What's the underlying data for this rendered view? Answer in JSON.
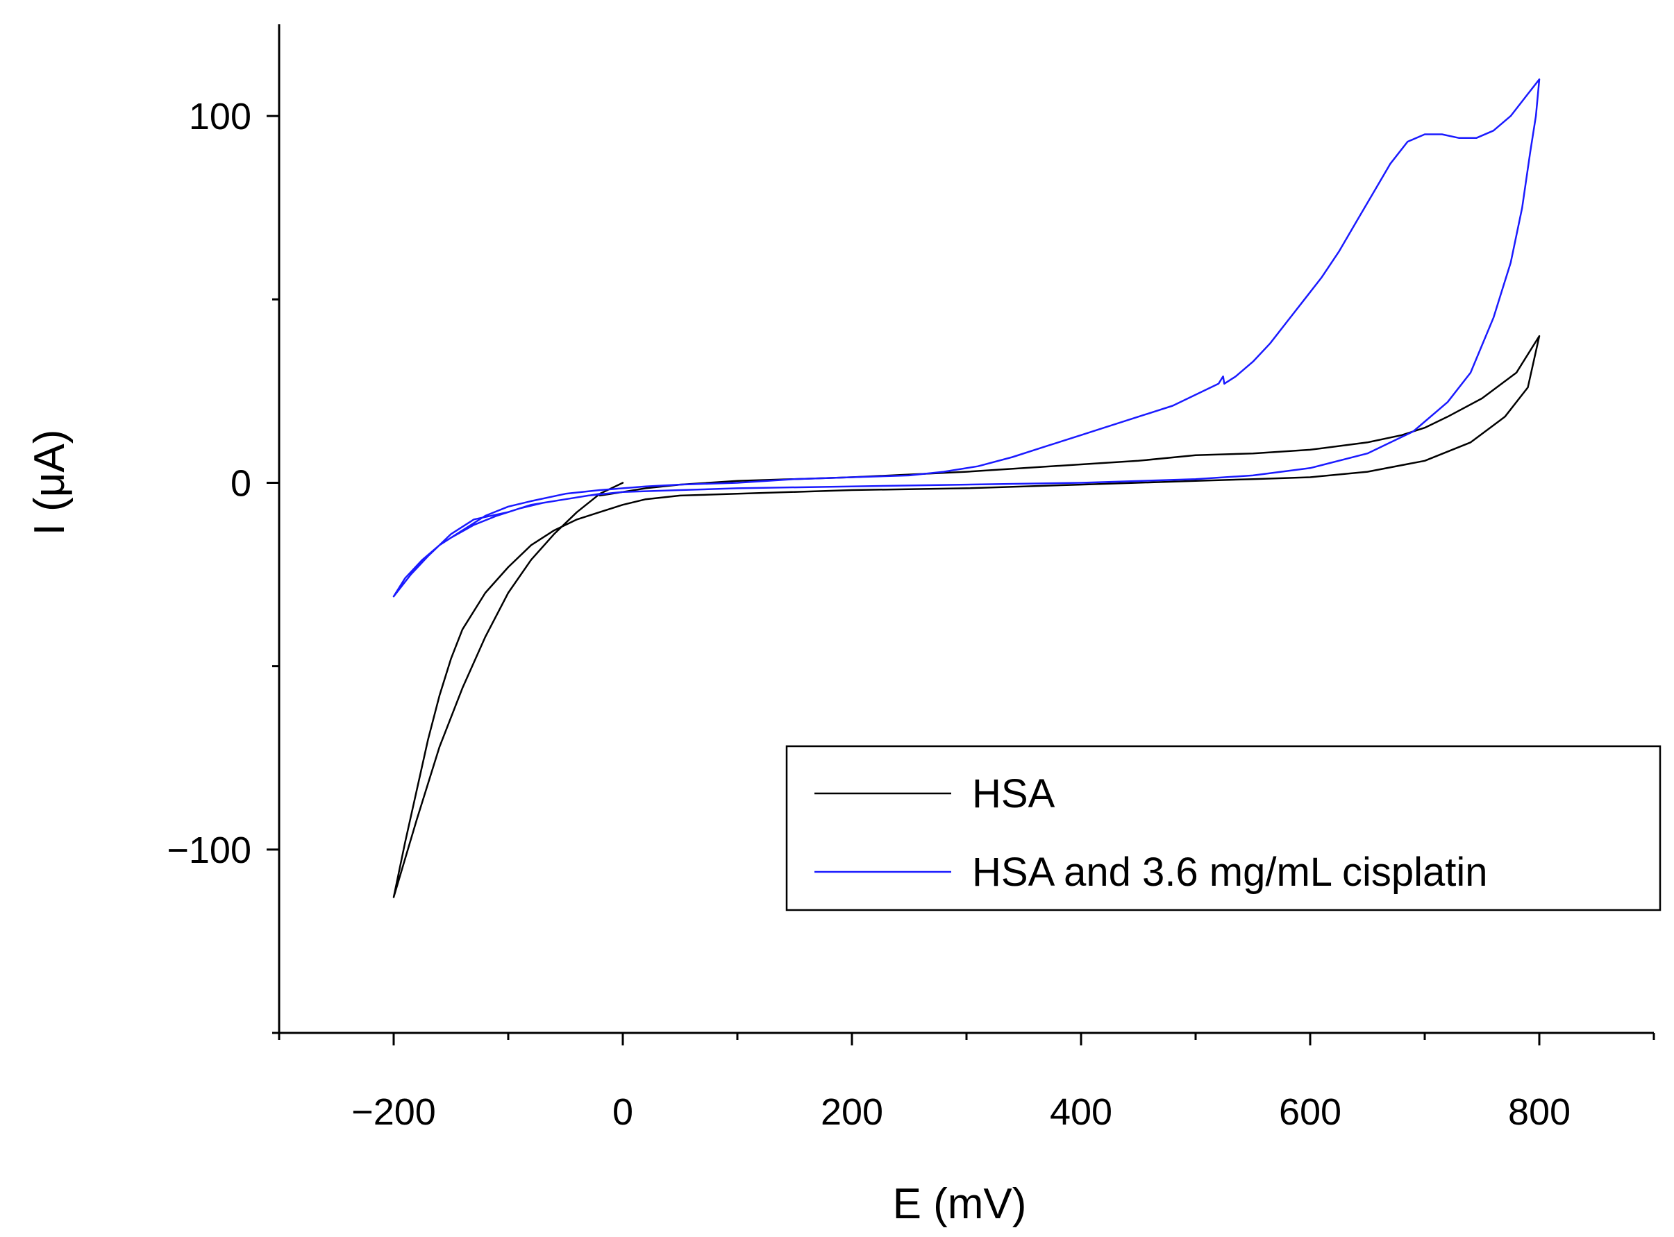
{
  "chart_data": {
    "type": "line",
    "xlabel": "E (mV)",
    "ylabel": "I (μA)",
    "xlim": [
      -300,
      900
    ],
    "ylim": [
      -150,
      125
    ],
    "xticks": [
      -200,
      0,
      200,
      400,
      600,
      800
    ],
    "xtick_labels": [
      "−200",
      "0",
      "200",
      "400",
      "600",
      "800"
    ],
    "yticks": [
      -100,
      0,
      100
    ],
    "ytick_labels": [
      "−100",
      "0",
      "100"
    ],
    "x_minor_step": 100,
    "y_minor_step": 50,
    "legend": {
      "position": "lower-right",
      "entries": [
        "HSA",
        "HSA and 3.6 mg/mL cisplatin"
      ]
    },
    "series": [
      {
        "name": "HSA",
        "color": "#000000",
        "points": [
          [
            0,
            0
          ],
          [
            -20,
            -3
          ],
          [
            -40,
            -8
          ],
          [
            -60,
            -14
          ],
          [
            -80,
            -21
          ],
          [
            -100,
            -30
          ],
          [
            -120,
            -42
          ],
          [
            -140,
            -56
          ],
          [
            -160,
            -72
          ],
          [
            -180,
            -92
          ],
          [
            -200,
            -113
          ],
          [
            -190,
            -98
          ],
          [
            -180,
            -84
          ],
          [
            -170,
            -70
          ],
          [
            -160,
            -58
          ],
          [
            -150,
            -48
          ],
          [
            -140,
            -40
          ],
          [
            -120,
            -30
          ],
          [
            -100,
            -23
          ],
          [
            -80,
            -17
          ],
          [
            -60,
            -13
          ],
          [
            -40,
            -10
          ],
          [
            -20,
            -8
          ],
          [
            0,
            -6
          ],
          [
            20,
            -4.5
          ],
          [
            50,
            -3.5
          ],
          [
            100,
            -3
          ],
          [
            200,
            -2
          ],
          [
            300,
            -1.5
          ],
          [
            400,
            -0.5
          ],
          [
            500,
            0.5
          ],
          [
            550,
            1
          ],
          [
            600,
            1.5
          ],
          [
            650,
            3
          ],
          [
            700,
            6
          ],
          [
            740,
            11
          ],
          [
            770,
            18
          ],
          [
            790,
            26
          ],
          [
            800,
            40
          ],
          [
            780,
            30
          ],
          [
            750,
            23
          ],
          [
            720,
            18
          ],
          [
            700,
            15
          ],
          [
            680,
            13
          ],
          [
            650,
            11
          ],
          [
            600,
            9
          ],
          [
            550,
            8
          ],
          [
            500,
            7.5
          ],
          [
            450,
            6
          ],
          [
            400,
            5
          ],
          [
            350,
            4
          ],
          [
            300,
            3
          ],
          [
            200,
            1.5
          ],
          [
            100,
            0.5
          ],
          [
            50,
            -0.5
          ],
          [
            20,
            -1.5
          ],
          [
            0,
            -2.5
          ],
          [
            -20,
            -3.5
          ]
        ]
      },
      {
        "name": "HSA and 3.6 mg/mL cisplatin",
        "color": "#1a1aff",
        "points": [
          [
            -20,
            -3
          ],
          [
            -50,
            -4.5
          ],
          [
            -80,
            -6
          ],
          [
            -100,
            -8
          ],
          [
            -130,
            -10
          ],
          [
            -150,
            -14
          ],
          [
            -170,
            -20
          ],
          [
            -185,
            -25
          ],
          [
            -200,
            -31
          ],
          [
            -190,
            -27
          ],
          [
            -175,
            -21
          ],
          [
            -160,
            -17
          ],
          [
            -150,
            -15
          ],
          [
            -130,
            -11.5
          ],
          [
            -110,
            -9
          ],
          [
            -90,
            -7
          ],
          [
            -70,
            -5.5
          ],
          [
            -50,
            -4.5
          ],
          [
            -30,
            -3.5
          ],
          [
            0,
            -2.5
          ],
          [
            50,
            -2
          ],
          [
            100,
            -1.5
          ],
          [
            200,
            -1
          ],
          [
            300,
            -0.5
          ],
          [
            400,
            0
          ],
          [
            500,
            1
          ],
          [
            550,
            2
          ],
          [
            600,
            4
          ],
          [
            650,
            8
          ],
          [
            690,
            14
          ],
          [
            720,
            22
          ],
          [
            740,
            30
          ],
          [
            760,
            45
          ],
          [
            775,
            60
          ],
          [
            785,
            75
          ],
          [
            792,
            90
          ],
          [
            797,
            100
          ],
          [
            800,
            110
          ],
          [
            790,
            106
          ],
          [
            775,
            100
          ],
          [
            760,
            96
          ],
          [
            745,
            94
          ],
          [
            730,
            94
          ],
          [
            715,
            95
          ],
          [
            700,
            95
          ],
          [
            685,
            93
          ],
          [
            670,
            87
          ],
          [
            655,
            79
          ],
          [
            640,
            71
          ],
          [
            625,
            63
          ],
          [
            610,
            56
          ],
          [
            595,
            50
          ],
          [
            580,
            44
          ],
          [
            565,
            38
          ],
          [
            550,
            33
          ],
          [
            535,
            29
          ],
          [
            525,
            27
          ],
          [
            524,
            29
          ],
          [
            520,
            27
          ],
          [
            500,
            24
          ],
          [
            480,
            21
          ],
          [
            450,
            18
          ],
          [
            420,
            15
          ],
          [
            400,
            13
          ],
          [
            370,
            10
          ],
          [
            340,
            7
          ],
          [
            310,
            4.5
          ],
          [
            280,
            3
          ],
          [
            250,
            2
          ],
          [
            200,
            1.5
          ],
          [
            150,
            1
          ],
          [
            100,
            0
          ],
          [
            50,
            -0.5
          ],
          [
            20,
            -1
          ],
          [
            0,
            -1.5
          ],
          [
            -20,
            -2
          ],
          [
            -50,
            -3
          ],
          [
            -80,
            -5
          ],
          [
            -100,
            -6.5
          ],
          [
            -120,
            -9
          ],
          [
            -140,
            -13
          ],
          [
            -160,
            -17
          ],
          [
            -175,
            -21
          ],
          [
            -190,
            -26
          ],
          [
            -200,
            -31
          ]
        ]
      }
    ]
  }
}
